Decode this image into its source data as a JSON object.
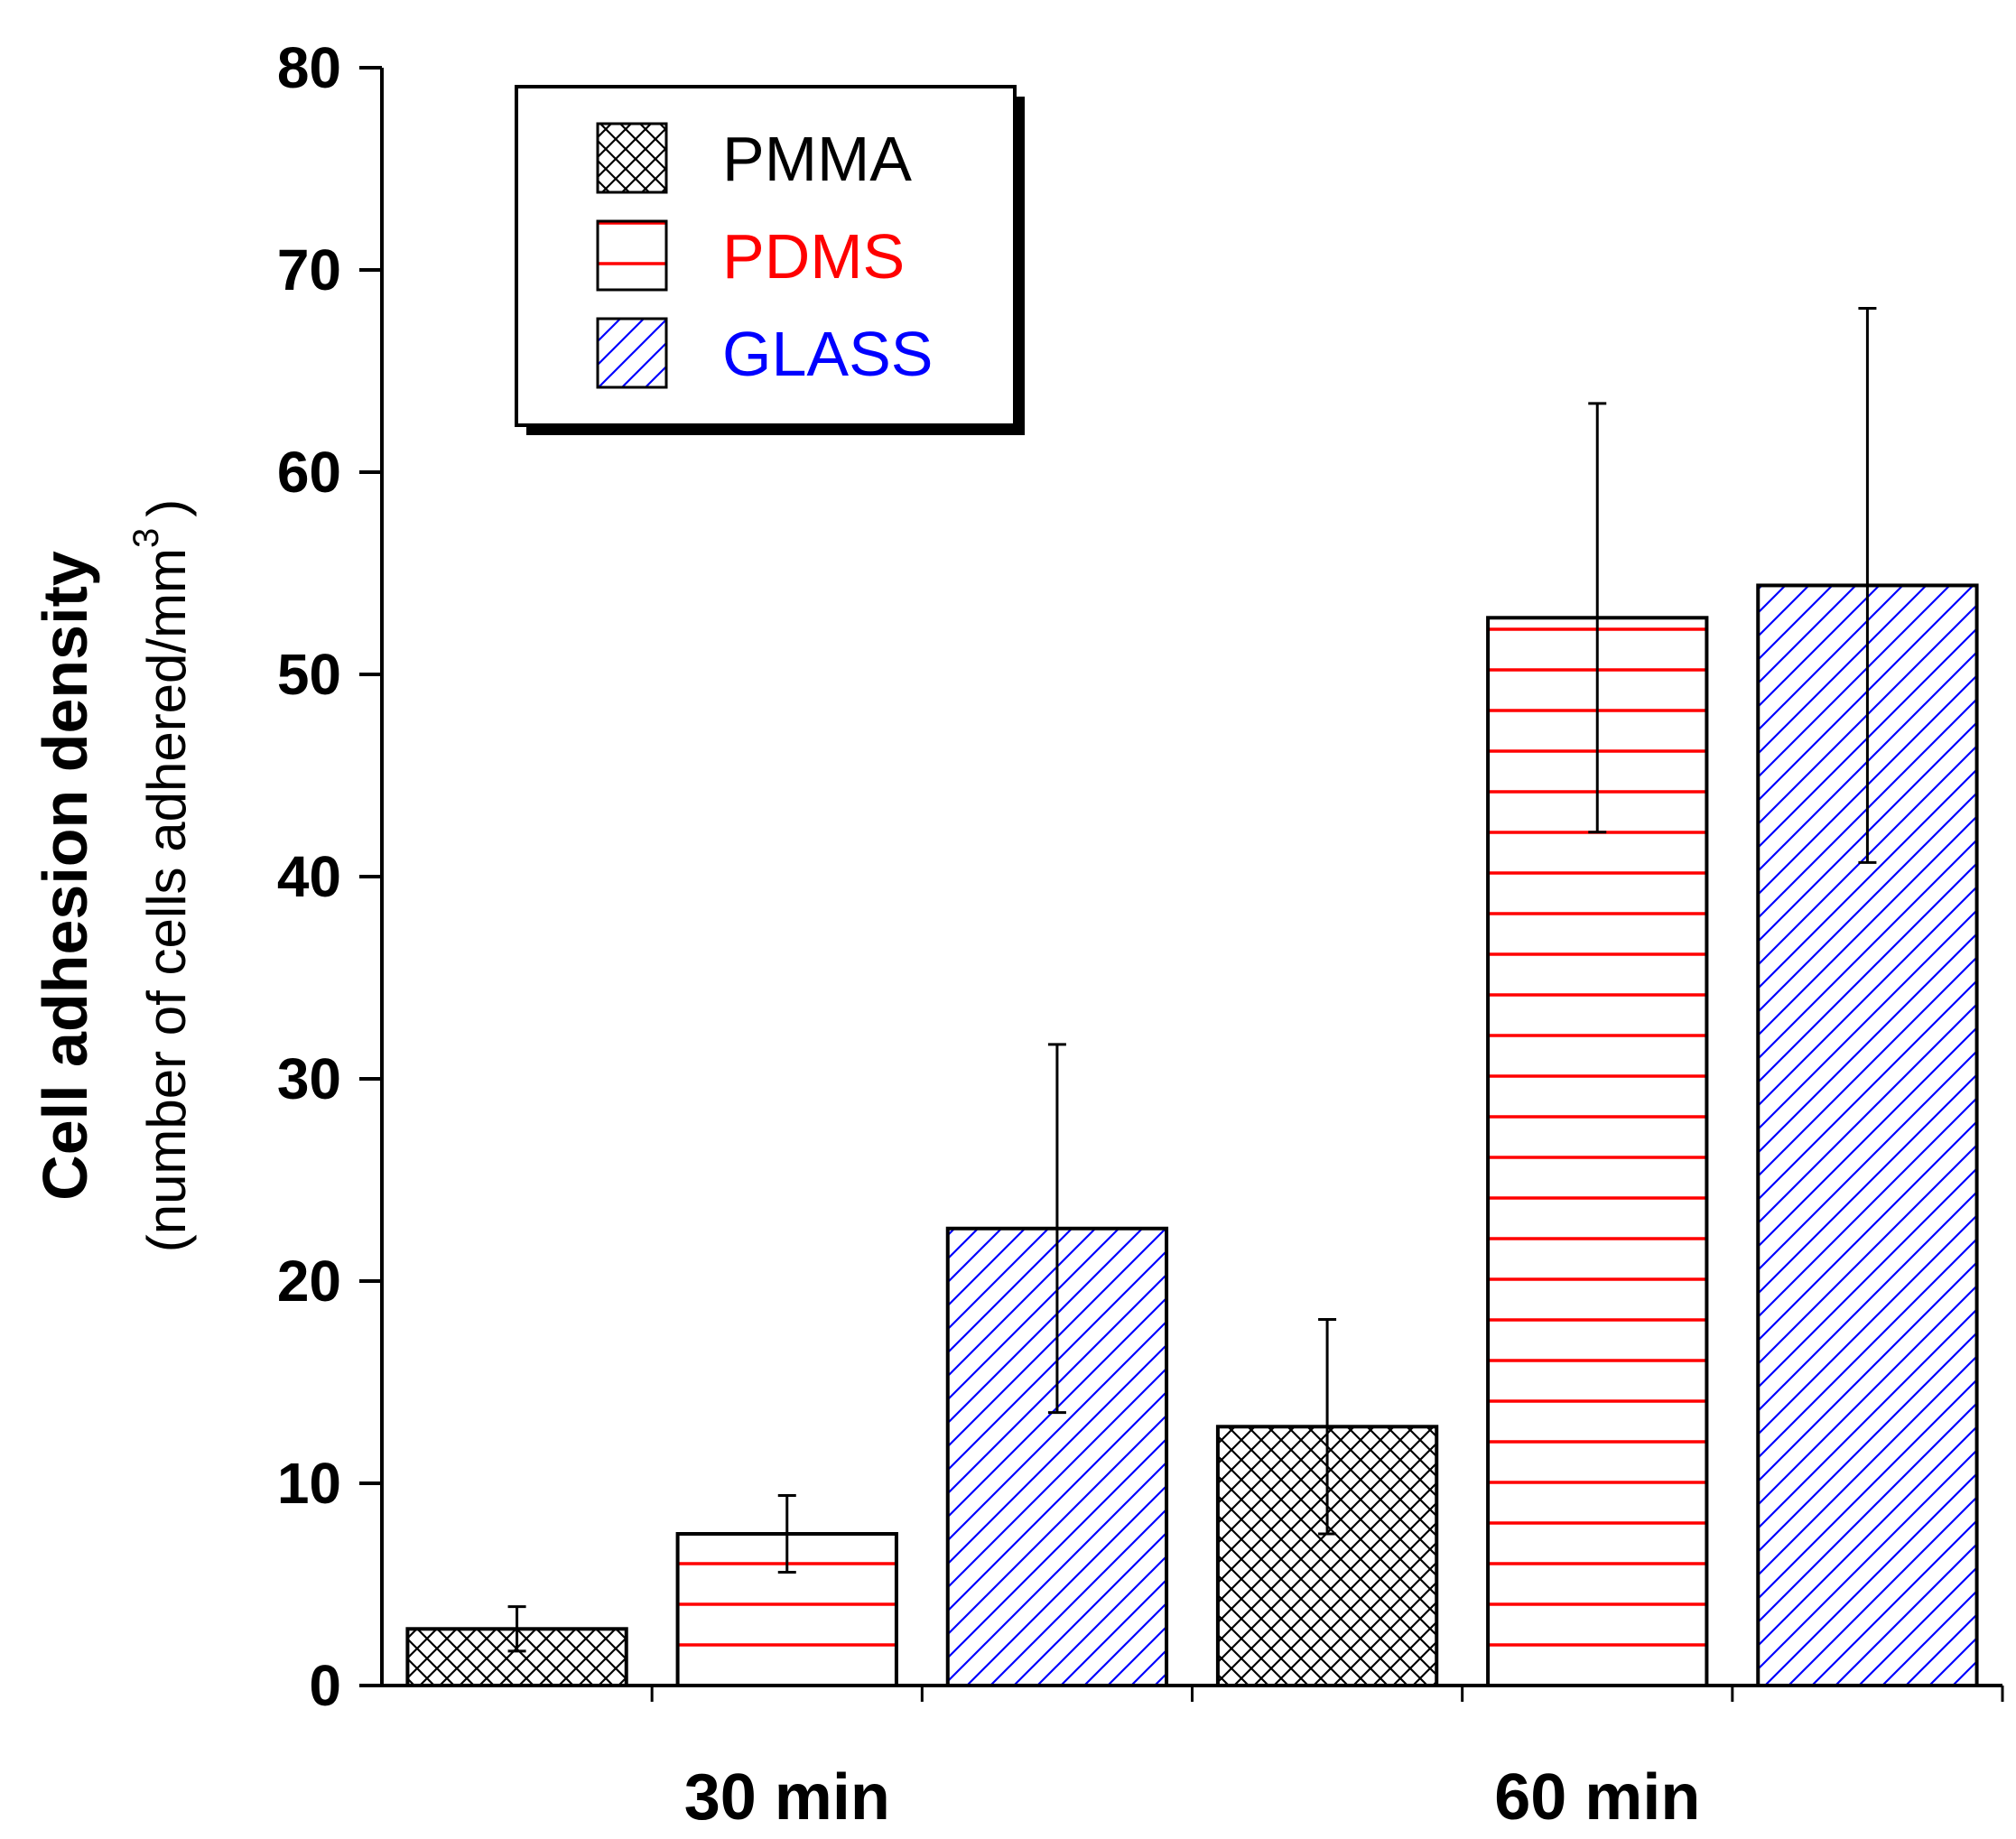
{
  "chart_data": {
    "type": "bar",
    "title": "",
    "xlabel": "",
    "ylabel": "Cell adhesion density",
    "ylabel_units_prefix": "(number of cells adhered/mm",
    "ylabel_units_superscript": "3",
    "ylabel_units_suffix": ")",
    "ylim": [
      0,
      80
    ],
    "yticks": [
      0,
      10,
      20,
      30,
      40,
      50,
      60,
      70,
      80
    ],
    "grid": false,
    "legend_position": "top-left",
    "categories": [
      "30 min",
      "60 min"
    ],
    "series": [
      {
        "name": "PMMA",
        "color": "#000000",
        "pattern": "crosshatch",
        "values": [
          2.8,
          12.8
        ],
        "errors": [
          1.1,
          5.3
        ]
      },
      {
        "name": "PDMS",
        "color": "#ff0000",
        "pattern": "horizontal",
        "values": [
          7.5,
          52.8
        ],
        "errors": [
          1.9,
          10.6
        ]
      },
      {
        "name": "GLASS",
        "color": "#0000ff",
        "pattern": "diagonal",
        "values": [
          22.6,
          54.4
        ],
        "errors": [
          9.1,
          13.7
        ]
      }
    ]
  }
}
